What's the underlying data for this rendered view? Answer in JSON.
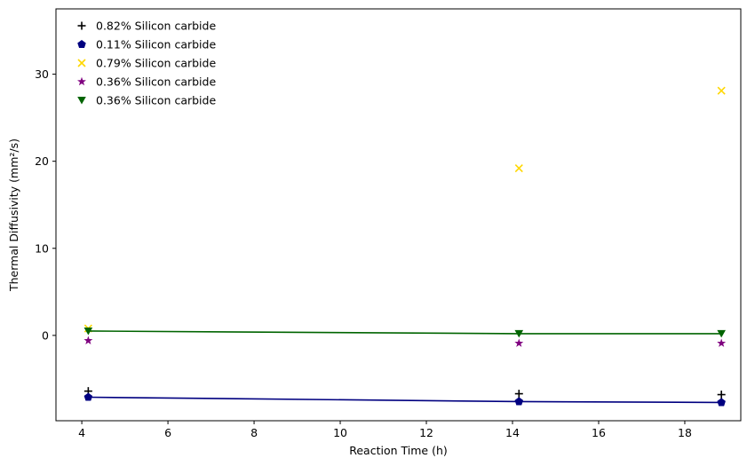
{
  "chart_data": {
    "type": "scatter",
    "xlabel": "Reaction Time (h)",
    "ylabel": "Thermal Diffusivity (mm²/s)",
    "xlim": [
      3.4,
      19.3
    ],
    "ylim": [
      -9.8,
      37.5
    ],
    "xticks": [
      4,
      6,
      8,
      10,
      12,
      14,
      16,
      18
    ],
    "yticks": [
      0,
      10,
      20,
      30
    ],
    "legend_position": "top-left",
    "series": [
      {
        "name": "0.82% Silicon carbide",
        "marker": "plus",
        "color": "#000000",
        "x": [
          4.15,
          14.15,
          18.85
        ],
        "y": [
          -6.4,
          -6.7,
          -6.8
        ],
        "line": false
      },
      {
        "name": "0.11% Silicon carbide",
        "marker": "pentagon",
        "color": "#000080",
        "x": [
          4.15,
          14.15,
          18.85
        ],
        "y": [
          -7.1,
          -7.6,
          -7.7
        ],
        "line": true
      },
      {
        "name": "0.79% Silicon carbide",
        "marker": "x",
        "color": "#ffd700",
        "x": [
          4.15,
          14.15,
          18.85
        ],
        "y": [
          0.8,
          19.2,
          28.1
        ],
        "line": false
      },
      {
        "name": "0.36% Silicon carbide",
        "marker": "star",
        "color": "#800080",
        "x": [
          4.15,
          14.15,
          18.85
        ],
        "y": [
          -0.6,
          -0.9,
          -0.9
        ],
        "line": false
      },
      {
        "name": "0.36% Silicon carbide",
        "marker": "triangle-down",
        "color": "#006400",
        "x": [
          4.15,
          14.15,
          18.85
        ],
        "y": [
          0.5,
          0.2,
          0.2
        ],
        "line": true
      }
    ]
  }
}
